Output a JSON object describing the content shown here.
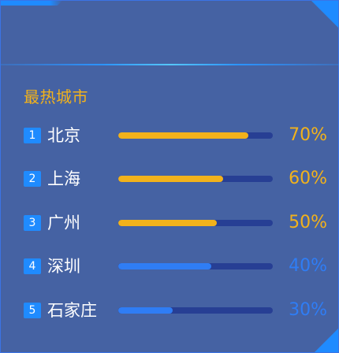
{
  "panel": {
    "title": "最热城市"
  },
  "colors": {
    "panel_bg": "#4562a3",
    "accent_blue": "#1f8bff",
    "track": "#273f94",
    "hot": "#f2b21b",
    "cool": "#2f7df5",
    "cool_text": "#2f7df5"
  },
  "rows": [
    {
      "rank": "1",
      "city": "北京",
      "percent_label": "70%",
      "level": 0.84,
      "tier": "hot"
    },
    {
      "rank": "2",
      "city": "上海",
      "percent_label": "60%",
      "level": 0.68,
      "tier": "hot"
    },
    {
      "rank": "3",
      "city": "广州",
      "percent_label": "50%",
      "level": 0.64,
      "tier": "hot"
    },
    {
      "rank": "4",
      "city": "深圳",
      "percent_label": "40%",
      "level": 0.6,
      "tier": "cool"
    },
    {
      "rank": "5",
      "city": "石家庄",
      "percent_label": "30%",
      "level": 0.35,
      "tier": "cool"
    }
  ]
}
